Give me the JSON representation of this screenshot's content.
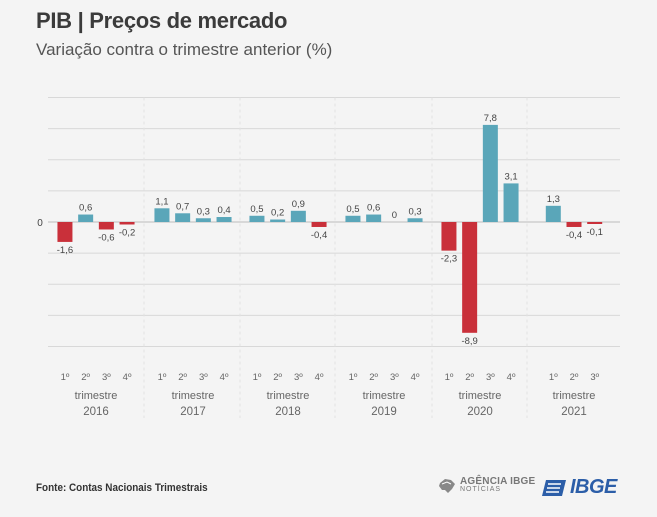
{
  "header": {
    "title": "PIB | Preços de mercado",
    "subtitle": "Variação contra o trimestre anterior (%)"
  },
  "footer": {
    "source": "Fonte: Contas Nacionais Trimestrais",
    "agencia_top": "AGÊNCIA IBGE",
    "agencia_bottom": "NOTÍCIAS",
    "ibge": "IBGE"
  },
  "colors": {
    "positive": "#5aa6b9",
    "negative": "#c9303a",
    "grid": "#d8d8d8",
    "zero_line": "#bdbdbd"
  },
  "chart_data": {
    "type": "bar",
    "ylim": [
      -10,
      10
    ],
    "zero_label": "0",
    "group_prefix": "trimestre",
    "groups": [
      {
        "year": "2016",
        "quarters": [
          "1º",
          "2º",
          "3º",
          "4º"
        ],
        "values": [
          -1.6,
          0.6,
          -0.6,
          -0.2
        ],
        "labels": [
          "-1,6",
          "0,6",
          "-0,6",
          "-0,2"
        ]
      },
      {
        "year": "2017",
        "quarters": [
          "1º",
          "2º",
          "3º",
          "4º"
        ],
        "values": [
          1.1,
          0.7,
          0.3,
          0.4
        ],
        "labels": [
          "1,1",
          "0,7",
          "0,3",
          "0,4"
        ]
      },
      {
        "year": "2018",
        "quarters": [
          "1º",
          "2º",
          "3º",
          "4º"
        ],
        "values": [
          0.5,
          0.2,
          0.9,
          -0.4
        ],
        "labels": [
          "0,5",
          "0,2",
          "0,9",
          "-0,4"
        ]
      },
      {
        "year": "2019",
        "quarters": [
          "1º",
          "2º",
          "3º",
          "4º"
        ],
        "values": [
          0.5,
          0.6,
          0.0,
          0.3
        ],
        "labels": [
          "0,5",
          "0,6",
          "0",
          "0,3"
        ]
      },
      {
        "year": "2020",
        "quarters": [
          "1º",
          "2º",
          "3º",
          "4º"
        ],
        "values": [
          -2.3,
          -8.9,
          7.8,
          3.1
        ],
        "labels": [
          "-2,3",
          "-8,9",
          "7,8",
          "3,1"
        ]
      },
      {
        "year": "2021",
        "quarters": [
          "1º",
          "2º",
          "3º"
        ],
        "values": [
          1.3,
          -0.4,
          -0.1
        ],
        "labels": [
          "1,3",
          "-0,4",
          "-0,1"
        ]
      }
    ]
  }
}
